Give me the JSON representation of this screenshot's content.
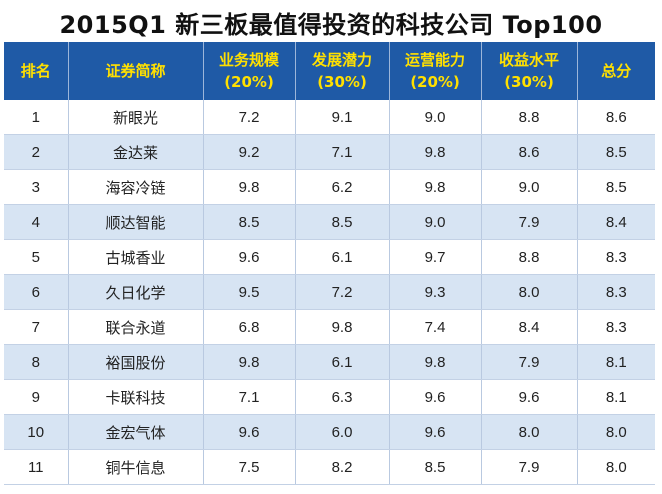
{
  "title": "2015Q1 新三板最值得投资的科技公司 Top100",
  "columns": [
    {
      "line1": "排名",
      "line2": ""
    },
    {
      "line1": "证券简称",
      "line2": ""
    },
    {
      "line1": "业务规模",
      "line2": "(20%)"
    },
    {
      "line1": "发展潜力",
      "line2": "(30%)"
    },
    {
      "line1": "运营能力",
      "line2": "(20%)"
    },
    {
      "line1": "收益水平",
      "line2": "(30%)"
    },
    {
      "line1": "总分",
      "line2": ""
    }
  ],
  "rows": [
    {
      "rank": "1",
      "name": "新眼光",
      "scale": "7.2",
      "potential": "9.1",
      "operation": "9.0",
      "income": "8.8",
      "total": "8.6"
    },
    {
      "rank": "2",
      "name": "金达莱",
      "scale": "9.2",
      "potential": "7.1",
      "operation": "9.8",
      "income": "8.6",
      "total": "8.5"
    },
    {
      "rank": "3",
      "name": "海容冷链",
      "scale": "9.8",
      "potential": "6.2",
      "operation": "9.8",
      "income": "9.0",
      "total": "8.5"
    },
    {
      "rank": "4",
      "name": "顺达智能",
      "scale": "8.5",
      "potential": "8.5",
      "operation": "9.0",
      "income": "7.9",
      "total": "8.4"
    },
    {
      "rank": "5",
      "name": "古城香业",
      "scale": "9.6",
      "potential": "6.1",
      "operation": "9.7",
      "income": "8.8",
      "total": "8.3"
    },
    {
      "rank": "6",
      "name": "久日化学",
      "scale": "9.5",
      "potential": "7.2",
      "operation": "9.3",
      "income": "8.0",
      "total": "8.3"
    },
    {
      "rank": "7",
      "name": "联合永道",
      "scale": "6.8",
      "potential": "9.8",
      "operation": "7.4",
      "income": "8.4",
      "total": "8.3"
    },
    {
      "rank": "8",
      "name": "裕国股份",
      "scale": "9.8",
      "potential": "6.1",
      "operation": "9.8",
      "income": "7.9",
      "total": "8.1"
    },
    {
      "rank": "9",
      "name": "卡联科技",
      "scale": "7.1",
      "potential": "6.3",
      "operation": "9.6",
      "income": "9.6",
      "total": "8.1"
    },
    {
      "rank": "10",
      "name": "金宏气体",
      "scale": "9.6",
      "potential": "6.0",
      "operation": "9.6",
      "income": "8.0",
      "total": "8.0"
    },
    {
      "rank": "11",
      "name": "铜牛信息",
      "scale": "7.5",
      "potential": "8.2",
      "operation": "8.5",
      "income": "7.9",
      "total": "8.0"
    }
  ]
}
